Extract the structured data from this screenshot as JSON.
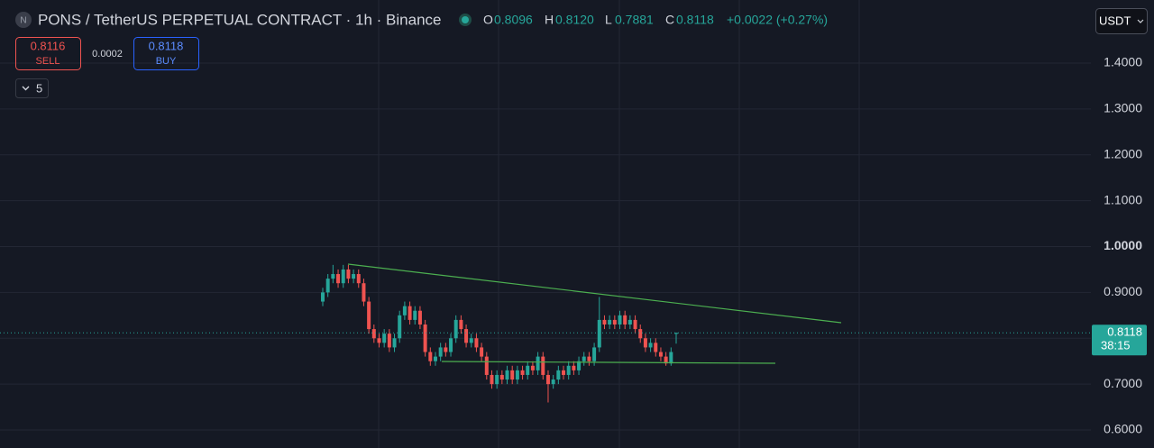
{
  "header": {
    "symbol": "PONS / TetherUS PERPETUAL CONTRACT · 1h · Binance",
    "o_label": "O",
    "o": "0.8096",
    "h_label": "H",
    "h": "0.8120",
    "l_label": "L",
    "l": "0.7881",
    "c_label": "C",
    "c": "0.8118",
    "change": "+0.0022 (+0.27%)"
  },
  "trade": {
    "sell_price": "0.8116",
    "sell": "SELL",
    "spread": "0.0002",
    "buy_price": "0.8118",
    "buy": "BUY",
    "indicators": "5"
  },
  "currency": "USDT",
  "chart_data": {
    "type": "candlestick",
    "ylim": [
      0.5607,
      1.5376
    ],
    "yticks": [
      {
        "value": 0.6,
        "label": "0.6000"
      },
      {
        "value": 0.7,
        "label": "0.7000"
      },
      {
        "value": 0.8,
        "label": "0.8000"
      },
      {
        "value": 0.9,
        "label": "0.9000"
      },
      {
        "value": 1.0,
        "label": "1.0000"
      },
      {
        "value": 1.1,
        "label": "1.1000"
      },
      {
        "value": 1.2,
        "label": "1.2000"
      },
      {
        "value": 1.3,
        "label": "1.3000"
      },
      {
        "value": 1.4,
        "label": "1.4000"
      }
    ],
    "grid": true,
    "up_color": "#26a69a",
    "down_color": "#ef5350",
    "open": [
      0.88,
      0.9,
      0.93,
      0.94,
      0.92,
      0.95,
      0.93,
      0.94,
      0.92,
      0.88,
      0.82,
      0.8,
      0.79,
      0.81,
      0.78,
      0.8,
      0.85,
      0.87,
      0.84,
      0.86,
      0.83,
      0.77,
      0.75,
      0.76,
      0.78,
      0.77,
      0.8,
      0.84,
      0.82,
      0.79,
      0.8,
      0.78,
      0.76,
      0.72,
      0.7,
      0.72,
      0.71,
      0.73,
      0.71,
      0.73,
      0.72,
      0.74,
      0.73,
      0.76,
      0.72,
      0.7,
      0.71,
      0.73,
      0.72,
      0.74,
      0.73,
      0.75,
      0.76,
      0.75,
      0.78,
      0.84,
      0.83,
      0.84,
      0.83,
      0.85,
      0.83,
      0.84,
      0.82,
      0.8,
      0.78,
      0.79,
      0.77,
      0.76,
      0.745,
      0.8096
    ],
    "high": [
      0.91,
      0.94,
      0.96,
      0.95,
      0.96,
      0.96,
      0.95,
      0.95,
      0.93,
      0.89,
      0.83,
      0.81,
      0.82,
      0.82,
      0.81,
      0.86,
      0.88,
      0.88,
      0.87,
      0.87,
      0.84,
      0.78,
      0.77,
      0.79,
      0.79,
      0.81,
      0.85,
      0.85,
      0.83,
      0.81,
      0.81,
      0.79,
      0.77,
      0.73,
      0.73,
      0.73,
      0.74,
      0.74,
      0.74,
      0.74,
      0.75,
      0.75,
      0.77,
      0.77,
      0.73,
      0.72,
      0.74,
      0.74,
      0.75,
      0.75,
      0.76,
      0.77,
      0.77,
      0.79,
      0.89,
      0.85,
      0.85,
      0.85,
      0.86,
      0.86,
      0.85,
      0.85,
      0.83,
      0.81,
      0.8,
      0.8,
      0.78,
      0.77,
      0.78,
      0.812
    ],
    "low": [
      0.87,
      0.89,
      0.92,
      0.91,
      0.91,
      0.92,
      0.92,
      0.91,
      0.87,
      0.81,
      0.79,
      0.78,
      0.78,
      0.77,
      0.77,
      0.79,
      0.84,
      0.83,
      0.83,
      0.82,
      0.76,
      0.74,
      0.74,
      0.75,
      0.76,
      0.76,
      0.79,
      0.81,
      0.78,
      0.78,
      0.77,
      0.75,
      0.71,
      0.69,
      0.69,
      0.7,
      0.7,
      0.7,
      0.7,
      0.71,
      0.71,
      0.72,
      0.72,
      0.71,
      0.66,
      0.69,
      0.7,
      0.71,
      0.71,
      0.72,
      0.72,
      0.74,
      0.74,
      0.74,
      0.77,
      0.82,
      0.82,
      0.82,
      0.82,
      0.82,
      0.82,
      0.81,
      0.79,
      0.77,
      0.77,
      0.76,
      0.75,
      0.74,
      0.74,
      0.7881
    ],
    "close": [
      0.9,
      0.93,
      0.94,
      0.92,
      0.95,
      0.93,
      0.94,
      0.92,
      0.88,
      0.82,
      0.8,
      0.79,
      0.81,
      0.78,
      0.8,
      0.85,
      0.87,
      0.84,
      0.86,
      0.83,
      0.77,
      0.75,
      0.76,
      0.78,
      0.77,
      0.8,
      0.84,
      0.82,
      0.79,
      0.8,
      0.78,
      0.76,
      0.72,
      0.7,
      0.72,
      0.71,
      0.73,
      0.71,
      0.73,
      0.72,
      0.74,
      0.73,
      0.76,
      0.72,
      0.7,
      0.71,
      0.73,
      0.72,
      0.74,
      0.73,
      0.75,
      0.76,
      0.75,
      0.78,
      0.84,
      0.83,
      0.84,
      0.83,
      0.85,
      0.83,
      0.84,
      0.82,
      0.8,
      0.78,
      0.79,
      0.77,
      0.76,
      0.745,
      0.77,
      0.8118
    ],
    "last_price": 0.8118,
    "countdown": "38:15"
  }
}
